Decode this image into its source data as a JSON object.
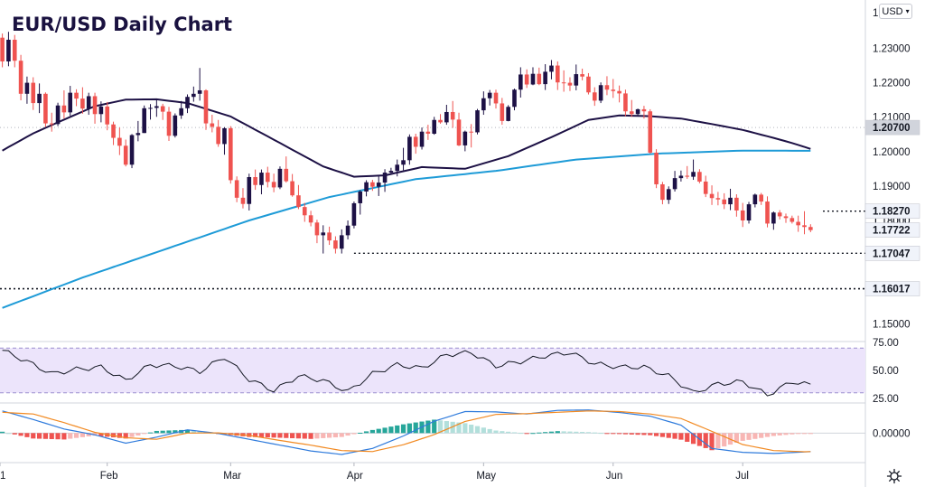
{
  "title": "EUR/USD Daily Chart",
  "currency": {
    "label": "USD",
    "chevron": "▾"
  },
  "icons": {
    "settings": "gear-icon",
    "currency_dropdown": "chevron-down-icon"
  },
  "colors": {
    "up": "#1d1145",
    "down": "#ef5350",
    "ma_slow": "#1e9bd7",
    "ma_fast": "#1d1145",
    "rsi_band": "#ece4fb",
    "rsi_line": "#131722",
    "macd_line": "#2f7bdc",
    "signal_line": "#f28a22",
    "hist_up_strong": "#26a69a",
    "hist_up_weak": "#b2dfdb",
    "hist_down_strong": "#ef5350",
    "hist_down_weak": "#f8b6b4"
  },
  "chart_data": [
    {
      "type": "candlestick",
      "title": "EUR/USD Daily Chart",
      "x_ticks": [
        "1",
        "Feb",
        "Mar",
        "Apr",
        "May",
        "Jun",
        "Jul"
      ],
      "y_ticks": [
        "1.15000",
        "1.16000",
        "1.17000",
        "1.18000",
        "1.19000",
        "1.20000",
        "1.21000",
        "1.22000",
        "1.23000"
      ],
      "ylim": [
        1.1468,
        1.2418
      ],
      "candles": [
        [
          1.2331,
          1.2343,
          1.2245,
          1.2262
        ],
        [
          1.2262,
          1.2348,
          1.2248,
          1.2325
        ],
        [
          1.2325,
          1.2339,
          1.2245,
          1.2264
        ],
        [
          1.2264,
          1.2281,
          1.2149,
          1.2168
        ],
        [
          1.2168,
          1.2218,
          1.2139,
          1.22
        ],
        [
          1.22,
          1.2216,
          1.2121,
          1.2141
        ],
        [
          1.2141,
          1.2198,
          1.2112,
          1.2168
        ],
        [
          1.2168,
          1.2172,
          1.2072,
          1.2082
        ],
        [
          1.2082,
          1.2113,
          1.2058,
          1.208
        ],
        [
          1.208,
          1.2142,
          1.2074,
          1.2134
        ],
        [
          1.2134,
          1.2178,
          1.2096,
          1.2114
        ],
        [
          1.2114,
          1.2191,
          1.2104,
          1.2171
        ],
        [
          1.2171,
          1.2181,
          1.2132,
          1.2154
        ],
        [
          1.2154,
          1.2187,
          1.211,
          1.2125
        ],
        [
          1.2125,
          1.2171,
          1.2107,
          1.2161
        ],
        [
          1.2161,
          1.2171,
          1.2081,
          1.2109
        ],
        [
          1.2109,
          1.2146,
          1.2085,
          1.2131
        ],
        [
          1.2131,
          1.2144,
          1.2062,
          1.2079
        ],
        [
          1.2079,
          1.2087,
          1.2019,
          1.204
        ],
        [
          1.204,
          1.207,
          1.199,
          1.2017
        ],
        [
          1.2017,
          1.2035,
          1.1957,
          1.1962
        ],
        [
          1.1962,
          1.2051,
          1.1952,
          1.2048
        ],
        [
          1.2048,
          1.2089,
          1.203,
          1.2054
        ],
        [
          1.2054,
          1.2134,
          1.2054,
          1.2126
        ],
        [
          1.2126,
          1.2138,
          1.2093,
          1.2127
        ],
        [
          1.2127,
          1.2152,
          1.2101,
          1.2132
        ],
        [
          1.2132,
          1.2139,
          1.2092,
          1.2116
        ],
        [
          1.2116,
          1.213,
          1.2031,
          1.2046
        ],
        [
          1.2046,
          1.2111,
          1.2041,
          1.2105
        ],
        [
          1.2105,
          1.2147,
          1.2095,
          1.2126
        ],
        [
          1.2126,
          1.2166,
          1.2112,
          1.2159
        ],
        [
          1.2159,
          1.2189,
          1.2145,
          1.2168
        ],
        [
          1.2168,
          1.2243,
          1.2148,
          1.2178
        ],
        [
          1.2178,
          1.2181,
          1.2063,
          1.2082
        ],
        [
          1.2082,
          1.2107,
          1.2056,
          1.2072
        ],
        [
          1.2072,
          1.2092,
          1.2014,
          1.2022
        ],
        [
          1.2022,
          1.2071,
          1.1991,
          1.2068
        ],
        [
          1.2068,
          1.2074,
          1.1907,
          1.1917
        ],
        [
          1.1917,
          1.1928,
          1.1853,
          1.1866
        ],
        [
          1.1866,
          1.1894,
          1.1835,
          1.1848
        ],
        [
          1.1848,
          1.1936,
          1.1829,
          1.1926
        ],
        [
          1.1926,
          1.1948,
          1.1889,
          1.1903
        ],
        [
          1.1903,
          1.1948,
          1.1876,
          1.1939
        ],
        [
          1.1939,
          1.1956,
          1.1896,
          1.1912
        ],
        [
          1.1912,
          1.1936,
          1.1882,
          1.1896
        ],
        [
          1.1896,
          1.1957,
          1.1891,
          1.195
        ],
        [
          1.195,
          1.1986,
          1.191,
          1.1914
        ],
        [
          1.1914,
          1.1935,
          1.1869,
          1.1873
        ],
        [
          1.1873,
          1.1903,
          1.1833,
          1.1839
        ],
        [
          1.1839,
          1.1851,
          1.1796,
          1.1815
        ],
        [
          1.1815,
          1.1828,
          1.1783,
          1.1794
        ],
        [
          1.1794,
          1.1802,
          1.1734,
          1.1757
        ],
        [
          1.1757,
          1.1786,
          1.1704,
          1.1765
        ],
        [
          1.1765,
          1.1782,
          1.1729,
          1.1742
        ],
        [
          1.1742,
          1.1754,
          1.1704,
          1.1718
        ],
        [
          1.1718,
          1.1774,
          1.1704,
          1.1757
        ],
        [
          1.1757,
          1.18,
          1.1745,
          1.1785
        ],
        [
          1.1785,
          1.1855,
          1.1777,
          1.185
        ],
        [
          1.185,
          1.1888,
          1.1817,
          1.1884
        ],
        [
          1.1884,
          1.1917,
          1.187,
          1.1911
        ],
        [
          1.1911,
          1.1918,
          1.1886,
          1.1898
        ],
        [
          1.1898,
          1.1929,
          1.1871,
          1.191
        ],
        [
          1.191,
          1.1949,
          1.1883,
          1.1939
        ],
        [
          1.1939,
          1.1953,
          1.1933,
          1.1944
        ],
        [
          1.1944,
          1.1977,
          1.1928,
          1.1962
        ],
        [
          1.1962,
          1.2011,
          1.1946,
          1.1975
        ],
        [
          1.1975,
          1.205,
          1.1962,
          1.2043
        ],
        [
          1.2043,
          1.2052,
          1.1994,
          1.2014
        ],
        [
          1.2014,
          1.207,
          1.2006,
          1.2058
        ],
        [
          1.2058,
          1.2078,
          1.2034,
          1.2052
        ],
        [
          1.2052,
          1.2101,
          1.2049,
          1.2092
        ],
        [
          1.2092,
          1.2109,
          1.2081,
          1.2085
        ],
        [
          1.2085,
          1.2136,
          1.2078,
          1.2115
        ],
        [
          1.2115,
          1.2147,
          1.2069,
          1.2093
        ],
        [
          1.2093,
          1.2113,
          1.2016,
          1.2018
        ],
        [
          1.2018,
          1.2061,
          1.2001,
          1.2058
        ],
        [
          1.2058,
          1.208,
          1.2012,
          1.2056
        ],
        [
          1.2056,
          1.2124,
          1.205,
          1.212
        ],
        [
          1.212,
          1.2175,
          1.2107,
          1.2155
        ],
        [
          1.2155,
          1.2179,
          1.2134,
          1.2171
        ],
        [
          1.2171,
          1.218,
          1.2125,
          1.214
        ],
        [
          1.214,
          1.2156,
          1.2078,
          1.2089
        ],
        [
          1.2089,
          1.2135,
          1.2088,
          1.213
        ],
        [
          1.213,
          1.2183,
          1.212,
          1.218
        ],
        [
          1.218,
          1.2245,
          1.2157,
          1.2224
        ],
        [
          1.2224,
          1.2239,
          1.2185,
          1.2195
        ],
        [
          1.2195,
          1.2245,
          1.2193,
          1.2226
        ],
        [
          1.2226,
          1.2244,
          1.2193,
          1.2196
        ],
        [
          1.2196,
          1.2254,
          1.2179,
          1.2232
        ],
        [
          1.2232,
          1.2266,
          1.221,
          1.225
        ],
        [
          1.225,
          1.2262,
          1.2179,
          1.2201
        ],
        [
          1.2201,
          1.2236,
          1.2174,
          1.22
        ],
        [
          1.22,
          1.2216,
          1.2176,
          1.2192
        ],
        [
          1.2192,
          1.2253,
          1.2178,
          1.2225
        ],
        [
          1.2225,
          1.2241,
          1.2207,
          1.2218
        ],
        [
          1.2218,
          1.2228,
          1.2166,
          1.2172
        ],
        [
          1.2172,
          1.2187,
          1.2133,
          1.2148
        ],
        [
          1.2148,
          1.2201,
          1.2141,
          1.2193
        ],
        [
          1.2193,
          1.2219,
          1.2164,
          1.218
        ],
        [
          1.218,
          1.2211,
          1.2156,
          1.2176
        ],
        [
          1.2176,
          1.2192,
          1.2143,
          1.2169
        ],
        [
          1.2169,
          1.218,
          1.2103,
          1.2117
        ],
        [
          1.2117,
          1.215,
          1.2101,
          1.2109
        ],
        [
          1.2109,
          1.2125,
          1.2104,
          1.2123
        ],
        [
          1.2123,
          1.2133,
          1.2096,
          1.2117
        ],
        [
          1.2117,
          1.2123,
          1.1994,
          1.1997
        ],
        [
          1.1997,
          1.2007,
          1.1894,
          1.1905
        ],
        [
          1.1905,
          1.1912,
          1.1847,
          1.186
        ],
        [
          1.186,
          1.1899,
          1.1848,
          1.1891
        ],
        [
          1.1891,
          1.1944,
          1.1884,
          1.1923
        ],
        [
          1.1923,
          1.1945,
          1.1913,
          1.193
        ],
        [
          1.193,
          1.1958,
          1.1921,
          1.1927
        ],
        [
          1.1927,
          1.1977,
          1.1918,
          1.1941
        ],
        [
          1.1941,
          1.1949,
          1.1908,
          1.1913
        ],
        [
          1.1913,
          1.193,
          1.1868,
          1.1877
        ],
        [
          1.1877,
          1.1902,
          1.1845,
          1.1865
        ],
        [
          1.1865,
          1.1883,
          1.1844,
          1.1861
        ],
        [
          1.1861,
          1.1879,
          1.1833,
          1.1847
        ],
        [
          1.1847,
          1.1892,
          1.183,
          1.1866
        ],
        [
          1.1866,
          1.1876,
          1.1811,
          1.1829
        ],
        [
          1.1829,
          1.1851,
          1.1781,
          1.18
        ],
        [
          1.18,
          1.1854,
          1.1791,
          1.1847
        ],
        [
          1.1847,
          1.1878,
          1.1838,
          1.1875
        ],
        [
          1.1875,
          1.188,
          1.1845,
          1.1855
        ],
        [
          1.1855,
          1.187,
          1.178,
          1.1791
        ],
        [
          1.1791,
          1.1826,
          1.1773,
          1.1823
        ],
        [
          1.1823,
          1.183,
          1.1803,
          1.1812
        ],
        [
          1.1812,
          1.182,
          1.1793,
          1.1807
        ],
        [
          1.1807,
          1.1814,
          1.1791,
          1.1796
        ],
        [
          1.1796,
          1.1814,
          1.1767,
          1.1786
        ],
        [
          1.1786,
          1.1827,
          1.176,
          1.1781
        ],
        [
          1.1781,
          1.1789,
          1.1766,
          1.1772
        ]
      ],
      "ma_slow": {
        "label": "",
        "x": [
          0,
          13,
          27,
          40,
          53,
          67,
          80,
          93,
          106,
          120,
          135
        ],
        "values": [
          1.1546,
          1.1634,
          1.172,
          1.18,
          1.1868,
          1.192,
          1.1944,
          1.1977,
          1.1994,
          1.2003,
          1.2002
        ]
      },
      "ma_fast": {
        "label": "",
        "x": [
          0,
          5,
          10,
          15,
          20,
          25,
          30,
          37,
          45,
          52,
          57,
          62,
          68,
          75,
          82,
          90,
          95,
          100,
          105,
          110,
          115,
          120,
          125,
          128,
          131,
          135
        ],
        "values": [
          1.2003,
          1.2053,
          1.2093,
          1.2132,
          1.2151,
          1.2152,
          1.2141,
          1.2102,
          1.2025,
          1.1957,
          1.1927,
          1.1931,
          1.1955,
          1.195,
          1.1987,
          1.205,
          1.2092,
          1.2105,
          1.2103,
          1.2096,
          1.208,
          1.2063,
          1.204,
          1.2025,
          1.2008,
          1.1999
        ]
      },
      "price_tags": [
        {
          "label": "1.20700",
          "value": 1.207,
          "style": "grey",
          "line": "dotted-grey"
        },
        {
          "label": "1.18270",
          "value": 1.1827,
          "style": "light",
          "line": "dotted-short"
        },
        {
          "label": "1.17722",
          "value": 1.17722,
          "style": "light",
          "line": "none"
        },
        {
          "label": "1.17047",
          "value": 1.17047,
          "style": "light",
          "line": "dotted-from-low"
        },
        {
          "label": "1.16017",
          "value": 1.16017,
          "style": "light",
          "line": "dotted-full"
        }
      ],
      "hidden_tag_text": "1.18000"
    },
    {
      "type": "line",
      "name": "RSI",
      "y_ticks": [
        "75.00",
        "50.00",
        "25.00"
      ],
      "ylim": [
        25,
        75
      ],
      "band": [
        30,
        70
      ],
      "x": [
        0,
        4,
        8,
        12,
        16,
        20,
        24,
        28,
        32,
        36,
        40,
        44,
        48,
        52,
        56,
        60,
        64,
        68,
        72,
        76,
        80,
        84,
        88,
        92,
        96,
        100,
        104,
        108,
        112,
        116,
        120,
        124,
        128,
        132,
        135
      ],
      "values": [
        68,
        58,
        47,
        51,
        53,
        41,
        55,
        54,
        49,
        62,
        42,
        32,
        45,
        41,
        31,
        47,
        55,
        52,
        64,
        66,
        54,
        58,
        63,
        66,
        56,
        53,
        53,
        45,
        30,
        38,
        40,
        28,
        40,
        36,
        37
      ]
    },
    {
      "type": "line",
      "name": "MACD",
      "y_ticks": [
        "0.00000"
      ],
      "ylim": [
        -0.0138,
        0.0141
      ],
      "x": [
        0,
        5,
        10,
        15,
        20,
        25,
        30,
        35,
        40,
        45,
        50,
        55,
        60,
        65,
        70,
        75,
        80,
        85,
        90,
        95,
        100,
        105,
        110,
        115,
        120,
        125,
        130,
        135
      ],
      "macd": [
        0.0114,
        0.007,
        0.0021,
        -0.0009,
        -0.0052,
        -0.0021,
        0.0017,
        -0.0002,
        -0.0032,
        -0.0062,
        -0.0092,
        -0.011,
        -0.0079,
        -0.0015,
        0.0061,
        0.0111,
        0.0109,
        0.0098,
        0.0117,
        0.0119,
        0.0106,
        0.0087,
        0.0041,
        -0.0079,
        -0.0099,
        -0.0105,
        -0.0097,
        -0.0091
      ],
      "signal": [
        0.0107,
        0.0098,
        0.0054,
        0.0004,
        -0.0024,
        -0.0032,
        0.0,
        0.0001,
        -0.0012,
        -0.0038,
        -0.0062,
        -0.009,
        -0.0095,
        -0.006,
        -0.0008,
        0.006,
        0.0096,
        0.01,
        0.0107,
        0.0114,
        0.0111,
        0.0098,
        0.0075,
        0.0009,
        -0.0059,
        -0.009,
        -0.0096,
        -0.0092
      ]
    }
  ]
}
